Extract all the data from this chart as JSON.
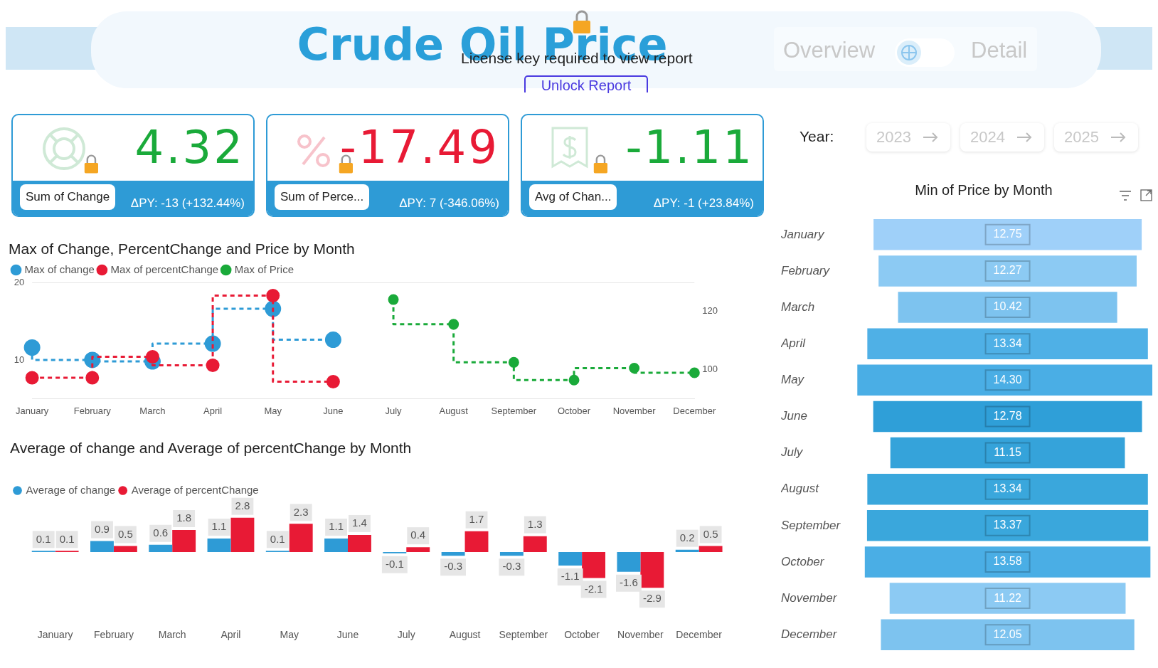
{
  "chart_data": [
    {
      "type": "other",
      "title": "Crude Oil Price",
      "annotations": [
        "License key required to view report",
        "Unlock Report",
        "Overview",
        "Detail",
        "Year:",
        "2023",
        "2024",
        "2025"
      ]
    },
    {
      "type": "other",
      "color": "#1aaa3a",
      "annotations": [
        "4.32",
        "Sum of Change",
        "ΔPY: -13 (+132.44%)"
      ]
    },
    {
      "type": "other",
      "color": "#e81a35",
      "annotations": [
        "-17.49",
        "Sum of Perce...",
        "ΔPY: 7 (-346.06%)"
      ]
    },
    {
      "type": "other",
      "color": "#1aaa3a",
      "annotations": [
        "-1.11",
        "Avg of Chan...",
        "ΔPY: -1 (+23.84%)"
      ]
    },
    {
      "type": "step",
      "title": "Max of Change, PercentChange and Price by Month",
      "categories": [
        "January",
        "February",
        "March",
        "April",
        "May",
        "June",
        "July",
        "August",
        "September",
        "October",
        "November",
        "December"
      ],
      "series": [
        {
          "name": "Max of change",
          "color": "#2e9bd6",
          "values": [
            11.6,
            10.0,
            9.8,
            12.1,
            16.6,
            12.6,
            null,
            null,
            null,
            null,
            null,
            null
          ]
        },
        {
          "name": "Max of percentChange",
          "color": "#e81a35",
          "values": [
            7.7,
            7.7,
            10.4,
            9.3,
            18.3,
            7.2,
            null,
            null,
            null,
            null,
            null,
            null
          ]
        },
        {
          "name": "Max of Price",
          "color": "#1aaa3a",
          "axis": "y2",
          "values": [
            null,
            null,
            null,
            null,
            null,
            null,
            124.1,
            115.6,
            102.5,
            96.4,
            100.5,
            98.9
          ]
        }
      ],
      "ylim": [
        5,
        20
      ],
      "yticks": [
        10,
        20
      ],
      "y2lim": [
        90,
        130
      ],
      "y2ticks": [
        100,
        120
      ],
      "legend": "top left",
      "marker": "circle",
      "line_style": "dashed",
      "grid": false
    },
    {
      "type": "bar",
      "title": "Average of change and Average of percentChange by Month",
      "categories": [
        "January",
        "February",
        "March",
        "April",
        "May",
        "June",
        "July",
        "August",
        "September",
        "October",
        "November",
        "December"
      ],
      "series": [
        {
          "name": "Average of change",
          "color": "#2e9bd6",
          "values": [
            0.1,
            0.9,
            0.6,
            1.1,
            0.1,
            1.1,
            -0.1,
            -0.3,
            -0.3,
            -1.1,
            -1.6,
            0.2
          ]
        },
        {
          "name": "Average of percentChange",
          "color": "#e81a35",
          "values": [
            0.1,
            0.5,
            1.8,
            2.8,
            2.3,
            1.4,
            0.4,
            1.7,
            1.3,
            -2.1,
            -2.9,
            0.5
          ]
        }
      ],
      "data_labels": true,
      "legend": "top left",
      "grid": false
    },
    {
      "type": "other",
      "title": "Min of Price by Month",
      "categories": [
        "January",
        "February",
        "March",
        "April",
        "May",
        "June",
        "July",
        "August",
        "September",
        "October",
        "November",
        "December"
      ],
      "values": [
        12.75,
        12.27,
        10.42,
        13.34,
        14.3,
        12.78,
        11.15,
        13.34,
        13.37,
        13.58,
        11.22,
        12.05
      ],
      "value_labels": [
        "12.75",
        "12.27",
        "10.42",
        "13.34",
        "14.30",
        "12.78",
        "11.15",
        "13.34",
        "13.37",
        "13.58",
        "11.22",
        "12.05"
      ],
      "colors": [
        "#9fd0f9",
        "#8ccaf3",
        "#7dc3ef",
        "#4fb0e6",
        "#4aaee5",
        "#2f9fd8",
        "#35a3da",
        "#3aa7dc",
        "#3aa7dc",
        "#4aaee5",
        "#8ccaf3",
        "#7dc3ef"
      ]
    }
  ]
}
